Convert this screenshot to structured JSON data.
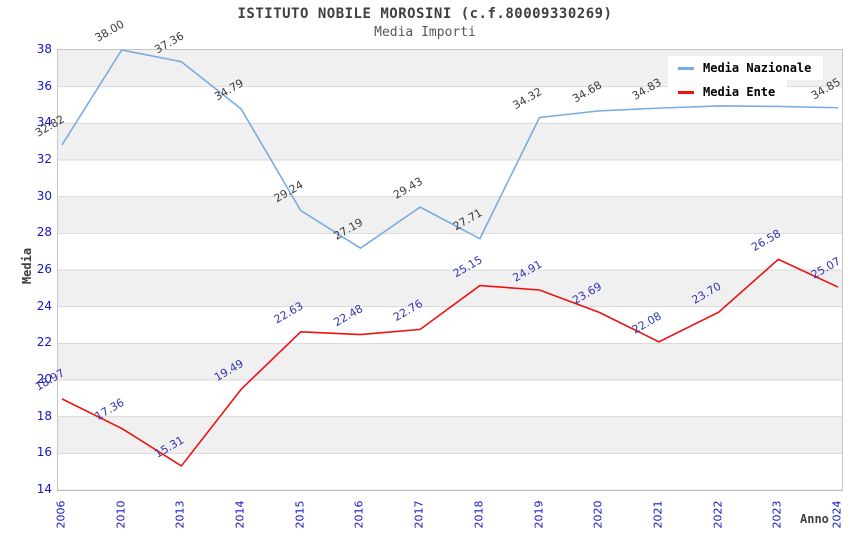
{
  "chart_data": {
    "type": "line",
    "title": "ISTITUTO NOBILE MOROSINI (c.f.80009330269)",
    "subtitle": "Media Importi",
    "xlabel": "Anno",
    "ylabel": "Media",
    "categories": [
      "2006",
      "2010",
      "2013",
      "2014",
      "2015",
      "2016",
      "2017",
      "2018",
      "2019",
      "2020",
      "2021",
      "2022",
      "2023",
      "2024"
    ],
    "series": [
      {
        "name": "Media Nazionale",
        "color": "#7aace0",
        "label_color": "#3c3c3c",
        "values": [
          32.82,
          38.0,
          37.36,
          34.79,
          29.24,
          27.19,
          29.43,
          27.71,
          34.32,
          34.68,
          34.83,
          34.95,
          34.92,
          34.85
        ]
      },
      {
        "name": "Media Ente",
        "color": "#ee1111",
        "label_color": "#3333b4",
        "values": [
          18.97,
          17.36,
          15.31,
          19.49,
          22.63,
          22.48,
          22.76,
          25.15,
          24.91,
          23.69,
          22.08,
          23.7,
          26.58,
          25.07
        ]
      }
    ],
    "ylim": [
      14,
      38
    ],
    "ytick_step": 2,
    "grid": true,
    "legend_position": "top-right",
    "gridline_color": "#d9d9d9",
    "band_color": "#f0f0f0",
    "tick_label_color": "#1515c8"
  }
}
